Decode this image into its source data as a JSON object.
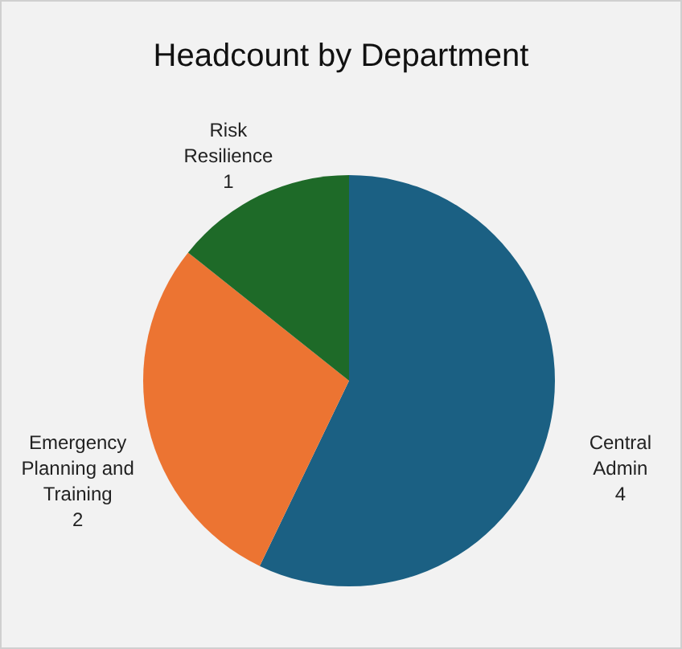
{
  "chart_data": {
    "type": "pie",
    "title": "Headcount by Department",
    "categories": [
      "Central Admin",
      "Emergency Planning and Training",
      "Risk Resilience"
    ],
    "values": [
      4,
      2,
      1
    ],
    "colors": [
      "#1b6083",
      "#ec7432",
      "#1e6a28"
    ],
    "data_labels": true
  }
}
